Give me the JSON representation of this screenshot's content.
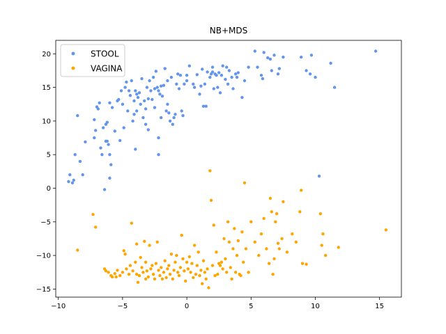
{
  "chart_data": {
    "type": "scatter",
    "title": "NB+MDS",
    "xlabel": "",
    "ylabel": "",
    "xlim": [
      -10.2,
      16.7
    ],
    "ylim": [
      -16.2,
      22.0
    ],
    "xticks": [
      -10,
      -5,
      0,
      5,
      10,
      15
    ],
    "yticks": [
      -15,
      -10,
      -5,
      0,
      5,
      10,
      15,
      20
    ],
    "grid": false,
    "legend": "top-left",
    "series": [
      {
        "name": "STOOL",
        "color": "#6495ed",
        "points": [
          [
            -9.2,
            1.0
          ],
          [
            -9.1,
            2.0
          ],
          [
            -8.9,
            0.8
          ],
          [
            -8.8,
            1.2
          ],
          [
            -8.7,
            5.0
          ],
          [
            -8.5,
            10.8
          ],
          [
            -8.3,
            4.0
          ],
          [
            -8.1,
            2.0
          ],
          [
            -7.9,
            6.9
          ],
          [
            -7.2,
            7.5
          ],
          [
            -7.2,
            10.2
          ],
          [
            -7.1,
            8.6
          ],
          [
            -7.0,
            12.1
          ],
          [
            -6.9,
            11.8
          ],
          [
            -6.8,
            12.7
          ],
          [
            -6.7,
            6.0
          ],
          [
            -6.6,
            5.0
          ],
          [
            -6.5,
            9.0
          ],
          [
            -6.4,
            -0.2
          ],
          [
            -6.3,
            7.0
          ],
          [
            -6.3,
            9.5
          ],
          [
            -6.2,
            9.8
          ],
          [
            -6.2,
            7.0
          ],
          [
            -6.1,
            6.5
          ],
          [
            -6.0,
            12.7
          ],
          [
            -6.0,
            5.0
          ],
          [
            -6.0,
            1.5
          ],
          [
            -5.9,
            3.5
          ],
          [
            -5.8,
            12.0
          ],
          [
            -5.6,
            8.5
          ],
          [
            -5.4,
            13.0
          ],
          [
            -5.3,
            13.2
          ],
          [
            -5.2,
            7.1
          ],
          [
            -5.1,
            14.5
          ],
          [
            -5.0,
            12.5
          ],
          [
            -4.9,
            9.0
          ],
          [
            -4.8,
            15.0
          ],
          [
            -4.7,
            15.8
          ],
          [
            -4.6,
            11.5
          ],
          [
            -4.5,
            14.5
          ],
          [
            -4.4,
            13.8
          ],
          [
            -4.3,
            16.0
          ],
          [
            -4.2,
            10.0
          ],
          [
            -4.1,
            13.0
          ],
          [
            -4.1,
            11.0
          ],
          [
            -4.0,
            14.5
          ],
          [
            -4.0,
            5.8
          ],
          [
            -3.9,
            11.5
          ],
          [
            -3.9,
            14.0
          ],
          [
            -3.8,
            13.5
          ],
          [
            -3.7,
            14.2
          ],
          [
            -3.6,
            12.5
          ],
          [
            -3.5,
            16.3
          ],
          [
            -3.4,
            10.5
          ],
          [
            -3.3,
            13.0
          ],
          [
            -3.2,
            11.8
          ],
          [
            -3.2,
            9.5
          ],
          [
            -3.1,
            15.0
          ],
          [
            -3.0,
            13.3
          ],
          [
            -3.0,
            8.7
          ],
          [
            -2.9,
            16.0
          ],
          [
            -2.8,
            14.5
          ],
          [
            -2.7,
            13.2
          ],
          [
            -2.6,
            16.5
          ],
          [
            -2.5,
            14.8
          ],
          [
            -2.5,
            12.0
          ],
          [
            -2.4,
            17.4
          ],
          [
            -2.3,
            15.0
          ],
          [
            -2.2,
            5.0
          ],
          [
            -2.2,
            7.5
          ],
          [
            -2.2,
            14.5
          ],
          [
            -2.1,
            14.0
          ],
          [
            -2.0,
            10.5
          ],
          [
            -2.0,
            15.2
          ],
          [
            -1.9,
            13.7
          ],
          [
            -1.8,
            15.3
          ],
          [
            -1.7,
            17.8
          ],
          [
            -1.6,
            11.5
          ],
          [
            -1.5,
            12.5
          ],
          [
            -1.5,
            16.0
          ],
          [
            -1.4,
            11.2
          ],
          [
            -1.3,
            10.0
          ],
          [
            -1.2,
            16.5
          ],
          [
            -1.1,
            9.5
          ],
          [
            -1.0,
            10.5
          ],
          [
            -0.9,
            11.0
          ],
          [
            -0.8,
            15.5
          ],
          [
            -0.7,
            17.0
          ],
          [
            -0.6,
            14.8
          ],
          [
            -0.5,
            16.8
          ],
          [
            -0.4,
            11.5
          ],
          [
            -0.3,
            10.8
          ],
          [
            -0.2,
            15.5
          ],
          [
            0.0,
            16.0
          ],
          [
            0.0,
            16.8
          ],
          [
            0.2,
            18.2
          ],
          [
            0.5,
            15.5
          ],
          [
            0.6,
            15.0
          ],
          [
            0.8,
            16.9
          ],
          [
            1.0,
            14.0
          ],
          [
            1.1,
            15.2
          ],
          [
            1.2,
            17.7
          ],
          [
            1.3,
            12.2
          ],
          [
            1.4,
            15.5
          ],
          [
            1.5,
            12.2
          ],
          [
            1.6,
            17.3
          ],
          [
            1.8,
            16.5
          ],
          [
            1.9,
            17.0
          ],
          [
            2.0,
            17.3
          ],
          [
            2.0,
            18.0
          ],
          [
            2.1,
            14.8
          ],
          [
            2.2,
            17.0
          ],
          [
            2.3,
            16.8
          ],
          [
            2.4,
            15.0
          ],
          [
            2.5,
            17.2
          ],
          [
            2.6,
            14.2
          ],
          [
            2.7,
            16.8
          ],
          [
            2.8,
            18.2
          ],
          [
            3.0,
            16.2
          ],
          [
            3.1,
            18.0
          ],
          [
            3.2,
            15.5
          ],
          [
            3.3,
            17.5
          ],
          [
            3.5,
            16.5
          ],
          [
            3.6,
            14.8
          ],
          [
            3.8,
            17.0
          ],
          [
            3.9,
            16.5
          ],
          [
            4.0,
            17.2
          ],
          [
            4.3,
            13.5
          ],
          [
            4.5,
            16.0
          ],
          [
            4.8,
            18.0
          ],
          [
            5.3,
            20.4
          ],
          [
            5.5,
            18.0
          ],
          [
            5.8,
            16.8
          ],
          [
            5.9,
            16.3
          ],
          [
            6.0,
            20.2
          ],
          [
            6.3,
            19.4
          ],
          [
            6.5,
            19.2
          ],
          [
            6.6,
            17.5
          ],
          [
            6.8,
            19.8
          ],
          [
            7.1,
            17.0
          ],
          [
            7.2,
            17.8
          ],
          [
            7.5,
            19.5
          ],
          [
            8.9,
            19.5
          ],
          [
            9.3,
            17.5
          ],
          [
            9.6,
            17.0
          ],
          [
            9.7,
            19.8
          ],
          [
            10.0,
            16.5
          ],
          [
            10.3,
            1.8
          ],
          [
            11.2,
            18.6
          ],
          [
            11.5,
            15.0
          ],
          [
            14.7,
            20.4
          ]
        ]
      },
      {
        "name": "VAGINA",
        "color": "#ffa500",
        "points": [
          [
            -8.5,
            -9.2
          ],
          [
            -7.3,
            -3.9
          ],
          [
            -7.1,
            -5.8
          ],
          [
            -6.4,
            -12.0
          ],
          [
            -6.3,
            -12.3
          ],
          [
            -6.1,
            -12.5
          ],
          [
            -5.9,
            -13.0
          ],
          [
            -5.8,
            -13.2
          ],
          [
            -5.6,
            -12.7
          ],
          [
            -5.5,
            -13.2
          ],
          [
            -5.4,
            -12.2
          ],
          [
            -5.2,
            -13.0
          ],
          [
            -5.0,
            -12.5
          ],
          [
            -4.9,
            -9.3
          ],
          [
            -4.8,
            -9.8
          ],
          [
            -4.7,
            -12.0
          ],
          [
            -4.5,
            -12.8
          ],
          [
            -4.4,
            -11.5
          ],
          [
            -4.3,
            -5.2
          ],
          [
            -4.2,
            -12.3
          ],
          [
            -4.0,
            -11.0
          ],
          [
            -3.9,
            -8.3
          ],
          [
            -3.9,
            -12.8
          ],
          [
            -3.8,
            -14.0
          ],
          [
            -3.7,
            -13.0
          ],
          [
            -3.6,
            -10.3
          ],
          [
            -3.5,
            -11.8
          ],
          [
            -3.4,
            -12.5
          ],
          [
            -3.3,
            -7.9
          ],
          [
            -3.2,
            -13.5
          ],
          [
            -3.2,
            -11.0
          ],
          [
            -3.1,
            -12.3
          ],
          [
            -3.0,
            -13.2
          ],
          [
            -2.9,
            -8.5
          ],
          [
            -2.8,
            -12.0
          ],
          [
            -2.7,
            -11.5
          ],
          [
            -2.6,
            -12.8
          ],
          [
            -2.5,
            -13.5
          ],
          [
            -2.4,
            -11.2
          ],
          [
            -2.3,
            -8.0
          ],
          [
            -2.2,
            -12.2
          ],
          [
            -2.1,
            -13.0
          ],
          [
            -2.0,
            -11.8
          ],
          [
            -1.9,
            -13.5
          ],
          [
            -1.8,
            -12.5
          ],
          [
            -1.7,
            -10.8
          ],
          [
            -1.6,
            -13.3
          ],
          [
            -1.5,
            -12.0
          ],
          [
            -1.4,
            -11.5
          ],
          [
            -1.3,
            -12.8
          ],
          [
            -1.2,
            -9.8
          ],
          [
            -1.1,
            -13.5
          ],
          [
            -1.0,
            -12.2
          ],
          [
            -0.9,
            -11.0
          ],
          [
            -0.8,
            -10.0
          ],
          [
            -0.7,
            -12.5
          ],
          [
            -0.6,
            -13.0
          ],
          [
            -0.5,
            -11.8
          ],
          [
            -0.4,
            -7.0
          ],
          [
            -0.3,
            -10.5
          ],
          [
            -0.2,
            -12.3
          ],
          [
            -0.1,
            -13.8
          ],
          [
            0.0,
            -11.0
          ],
          [
            0.1,
            -12.0
          ],
          [
            0.2,
            -10.2
          ],
          [
            0.3,
            -12.5
          ],
          [
            0.4,
            -11.2
          ],
          [
            0.5,
            -13.3
          ],
          [
            0.6,
            -8.5
          ],
          [
            0.7,
            -12.8
          ],
          [
            0.8,
            -11.5
          ],
          [
            0.9,
            -9.5
          ],
          [
            1.0,
            -13.0
          ],
          [
            1.1,
            -12.2
          ],
          [
            1.2,
            -14.2
          ],
          [
            1.3,
            -10.8
          ],
          [
            1.4,
            -12.5
          ],
          [
            1.5,
            -13.5
          ],
          [
            1.6,
            -12.0
          ],
          [
            1.7,
            -14.8
          ],
          [
            1.8,
            2.6
          ],
          [
            1.9,
            -1.8
          ],
          [
            2.0,
            -11.5
          ],
          [
            2.1,
            -5.5
          ],
          [
            2.2,
            -13.0
          ],
          [
            2.3,
            -9.5
          ],
          [
            2.4,
            -12.8
          ],
          [
            2.5,
            -11.2
          ],
          [
            2.6,
            -11.5
          ],
          [
            2.7,
            -11.0
          ],
          [
            2.8,
            -12.0
          ],
          [
            2.9,
            -7.5
          ],
          [
            3.0,
            -10.5
          ],
          [
            3.1,
            -12.5
          ],
          [
            3.2,
            -5.0
          ],
          [
            3.3,
            -8.0
          ],
          [
            3.4,
            -11.8
          ],
          [
            3.5,
            -13.5
          ],
          [
            3.6,
            -9.0
          ],
          [
            3.7,
            -6.0
          ],
          [
            3.8,
            -12.5
          ],
          [
            3.9,
            -10.0
          ],
          [
            4.0,
            -7.8
          ],
          [
            4.1,
            -12.8
          ],
          [
            4.2,
            -13.0
          ],
          [
            4.3,
            -6.5
          ],
          [
            4.4,
            -11.0
          ],
          [
            4.5,
            0.8
          ],
          [
            4.6,
            -9.0
          ],
          [
            4.8,
            -12.5
          ],
          [
            5.0,
            -5.0
          ],
          [
            5.3,
            -8.0
          ],
          [
            5.6,
            -10.0
          ],
          [
            5.8,
            -6.8
          ],
          [
            6.0,
            -4.5
          ],
          [
            6.2,
            -9.0
          ],
          [
            6.4,
            -11.2
          ],
          [
            6.5,
            -1.5
          ],
          [
            6.6,
            -3.5
          ],
          [
            6.7,
            -12.8
          ],
          [
            6.8,
            -10.5
          ],
          [
            6.9,
            -5.0
          ],
          [
            7.0,
            -3.8
          ],
          [
            7.1,
            -8.2
          ],
          [
            7.2,
            -9.0
          ],
          [
            7.4,
            -7.5
          ],
          [
            7.5,
            -2.0
          ],
          [
            7.8,
            -9.5
          ],
          [
            8.2,
            -6.8
          ],
          [
            8.5,
            -8.0
          ],
          [
            8.8,
            -3.5
          ],
          [
            8.9,
            -0.3
          ],
          [
            9.0,
            -11.2
          ],
          [
            9.3,
            -11.3
          ],
          [
            10.4,
            -3.8
          ],
          [
            10.5,
            -8.5
          ],
          [
            10.6,
            -6.8
          ],
          [
            10.8,
            -10.0
          ],
          [
            11.8,
            -8.8
          ],
          [
            15.5,
            -6.2
          ]
        ]
      }
    ]
  }
}
